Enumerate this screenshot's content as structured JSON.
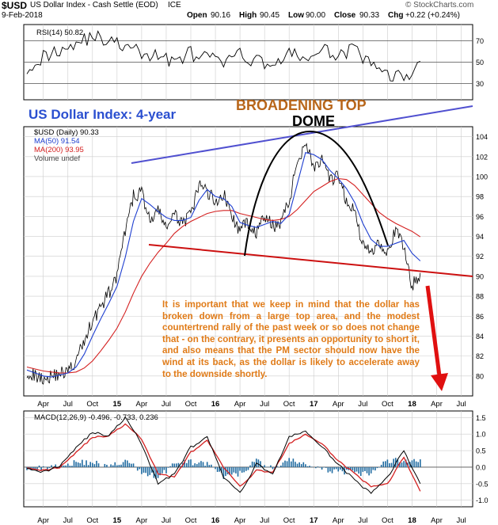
{
  "header": {
    "symbol": "$USD",
    "title": "US Dollar Index - Cash Settle (EOD)",
    "exchange": "ICE",
    "date": "9-Feb-2018",
    "open_label": "Open",
    "open": "90.16",
    "high_label": "High",
    "high": "90.45",
    "low_label": "Low",
    "low": "90.00",
    "close_label": "Close",
    "close": "90.33",
    "chg_label": "Chg",
    "chg": "+0.22 (+0.24%)",
    "brand": "© StockCharts.com"
  },
  "colors": {
    "price": "#000000",
    "ma50": "#1f3fd0",
    "ma200": "#d42020",
    "rsi": "#000000",
    "macd": "#000000",
    "signal": "#d42020",
    "histogram": "#1e6aa0",
    "trend_upper": "#5050d0",
    "trend_lower": "#cc1010",
    "arrow": "#e01010",
    "annotation": "#e07b18",
    "title_blue": "#2a4fd0",
    "broadening": "#b8661a",
    "panel_bg": "#ffffff",
    "grid": "#cccccc"
  },
  "chart_data": [
    {
      "type": "line",
      "name": "RSI panel",
      "legend": "RSI(14) 50.82",
      "ylim": [
        15,
        85
      ],
      "yticks": [
        30,
        50,
        70
      ],
      "reference_lines": [
        30,
        50,
        70
      ],
      "x": [
        0,
        2,
        4,
        6,
        8,
        10,
        12,
        14,
        16,
        18,
        20,
        22,
        24,
        26,
        28,
        30,
        32,
        34,
        36,
        38,
        40,
        42,
        44,
        46,
        48
      ],
      "values": [
        46,
        55,
        62,
        68,
        74,
        70,
        64,
        58,
        55,
        52,
        58,
        54,
        50,
        56,
        52,
        48,
        57,
        54,
        60,
        58,
        62,
        46,
        40,
        34,
        50.82
      ]
    },
    {
      "type": "line",
      "name": "Price panel",
      "legend": [
        "$USD (Daily) 90.33",
        "MA(50) 91.54",
        "MA(200) 93.95",
        "Volume undef"
      ],
      "ylim": [
        78,
        105
      ],
      "yticks": [
        80,
        82,
        84,
        86,
        88,
        90,
        92,
        94,
        96,
        98,
        100,
        102,
        104
      ],
      "x_unit": "months from Feb-2014",
      "x": [
        0,
        1,
        2,
        3,
        4,
        5,
        6,
        7,
        8,
        9,
        10,
        11,
        12,
        13,
        14,
        15,
        16,
        17,
        18,
        19,
        20,
        21,
        22,
        23,
        24,
        25,
        26,
        27,
        28,
        29,
        30,
        31,
        32,
        33,
        34,
        35,
        36,
        37,
        38,
        39,
        40,
        41,
        42,
        43,
        44,
        45,
        46,
        47,
        48
      ],
      "series": [
        {
          "name": "$USD (Daily)",
          "values": [
            80.5,
            80.0,
            79.8,
            80.0,
            80.3,
            80.4,
            81.5,
            83.5,
            85.6,
            86.9,
            88.3,
            90.0,
            94.5,
            98.0,
            98.5,
            95.5,
            96.5,
            95.0,
            96.0,
            95.5,
            96.0,
            99.2,
            98.5,
            97.5,
            98.3,
            96.0,
            94.5,
            95.5,
            94.3,
            96.0,
            95.0,
            95.5,
            97.5,
            101.5,
            103.5,
            101.0,
            101.5,
            99.5,
            100.0,
            97.5,
            96.5,
            93.0,
            92.5,
            93.5,
            92.5,
            94.5,
            93.0,
            89.0,
            90.33
          ]
        },
        {
          "name": "MA(50)",
          "values": [
            80.6,
            80.3,
            80.0,
            79.9,
            80.1,
            80.3,
            80.9,
            82.2,
            84.0,
            85.7,
            87.3,
            89.0,
            91.9,
            95.5,
            97.8,
            97.2,
            96.5,
            95.9,
            95.6,
            95.6,
            95.9,
            97.6,
            98.7,
            98.0,
            97.8,
            97.0,
            95.4,
            95.1,
            94.9,
            95.2,
            95.5,
            95.3,
            96.2,
            99.3,
            102.4,
            102.2,
            101.7,
            100.6,
            99.8,
            98.8,
            97.4,
            95.3,
            93.7,
            93.0,
            93.0,
            93.3,
            93.6,
            92.3,
            91.54
          ]
        },
        {
          "name": "MA(200)",
          "values": [
            80.9,
            80.7,
            80.5,
            80.4,
            80.3,
            80.3,
            80.4,
            80.8,
            81.5,
            82.5,
            83.6,
            84.8,
            86.4,
            88.3,
            90.0,
            91.3,
            92.4,
            93.3,
            94.3,
            95.0,
            95.5,
            95.9,
            96.3,
            96.5,
            96.6,
            96.6,
            96.3,
            96.1,
            95.9,
            95.7,
            95.6,
            95.7,
            96.0,
            96.7,
            97.6,
            98.5,
            99.0,
            99.5,
            99.8,
            99.7,
            99.1,
            98.2,
            97.3,
            96.4,
            95.8,
            95.3,
            94.9,
            94.5,
            93.95
          ]
        }
      ]
    },
    {
      "type": "line",
      "name": "MACD panel",
      "legend": "MACD(12,26,9) -0.496, -0.733, 0.236",
      "ylim": [
        -1.2,
        1.7
      ],
      "yticks": [
        -1.0,
        -0.5,
        0.0,
        0.5,
        1.0,
        1.5
      ],
      "x": [
        0,
        2,
        4,
        6,
        8,
        10,
        12,
        14,
        16,
        18,
        20,
        22,
        24,
        26,
        28,
        30,
        32,
        34,
        36,
        38,
        40,
        42,
        44,
        46,
        48
      ],
      "series": [
        {
          "name": "MACD",
          "values": [
            0.0,
            -0.15,
            0.05,
            0.6,
            1.05,
            0.95,
            1.5,
            0.7,
            -0.5,
            -0.2,
            0.6,
            0.9,
            -0.3,
            -0.8,
            0.1,
            -0.2,
            0.9,
            1.1,
            0.6,
            0.1,
            -0.4,
            -0.8,
            -0.3,
            0.5,
            -0.5
          ]
        },
        {
          "name": "Signal",
          "values": [
            0.0,
            -0.1,
            0.0,
            0.45,
            0.9,
            0.95,
            1.3,
            0.85,
            -0.2,
            -0.3,
            0.45,
            0.8,
            0.0,
            -0.6,
            -0.1,
            -0.15,
            0.7,
            1.0,
            0.7,
            0.2,
            -0.2,
            -0.6,
            -0.5,
            0.3,
            -0.73
          ]
        },
        {
          "name": "Histogram",
          "values": [
            0.0,
            -0.05,
            0.05,
            0.15,
            0.15,
            0.0,
            0.2,
            -0.15,
            -0.3,
            0.1,
            0.15,
            0.1,
            -0.3,
            -0.2,
            0.2,
            -0.05,
            0.2,
            0.1,
            -0.1,
            -0.1,
            -0.2,
            -0.2,
            0.2,
            0.2,
            0.236
          ]
        }
      ]
    }
  ],
  "x_axis": {
    "labels": [
      {
        "m": 2,
        "t": "Apr"
      },
      {
        "m": 5,
        "t": "Jul"
      },
      {
        "m": 8,
        "t": "Oct"
      },
      {
        "m": 11,
        "t": "15",
        "bold": true
      },
      {
        "m": 14,
        "t": "Apr"
      },
      {
        "m": 17,
        "t": "Jul"
      },
      {
        "m": 20,
        "t": "Oct"
      },
      {
        "m": 23,
        "t": "16",
        "bold": true
      },
      {
        "m": 26,
        "t": "Apr"
      },
      {
        "m": 29,
        "t": "Jul"
      },
      {
        "m": 32,
        "t": "Oct"
      },
      {
        "m": 35,
        "t": "17",
        "bold": true
      },
      {
        "m": 38,
        "t": "Apr"
      },
      {
        "m": 41,
        "t": "Jul"
      },
      {
        "m": 44,
        "t": "Oct"
      },
      {
        "m": 47,
        "t": "18",
        "bold": true
      },
      {
        "m": 50,
        "t": "Apr"
      },
      {
        "m": 53,
        "t": "Jul"
      }
    ]
  },
  "annotations": {
    "title": "US Dollar Index: 4-year",
    "broadening": "BROADENING TOP",
    "dome": "DOME",
    "commentary": "It is important that we keep in mind that the dollar has broken down from a large top area, and the modest countertrend rally of the past week or so does not change that - on the contrary, it presents an opportunity to short it, and also means that the PM sector should now have the wind at its back, as the dollar is likely to accelerate away to the downside shortly."
  }
}
